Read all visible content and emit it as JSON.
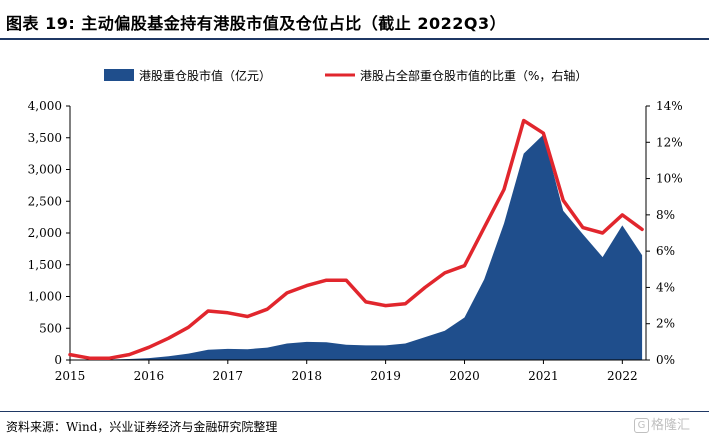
{
  "header": {
    "title": "图表 19:  主动偏股基金持有港股市值及仓位占比（截止 2022Q3）"
  },
  "footer": {
    "source": "资料来源：Wind，兴业证券经济与金融研究院整理",
    "watermark": "格隆汇"
  },
  "colors": {
    "area": "#1f4e8c",
    "line": "#e1262d",
    "rule": "#1f3864"
  },
  "chart_data": {
    "type": "area",
    "title": "",
    "x_tick_labels": [
      "2015",
      "2016",
      "2017",
      "2018",
      "2019",
      "2020",
      "2021",
      "2022"
    ],
    "x": [
      2015.0,
      2015.25,
      2015.5,
      2015.75,
      2016.0,
      2016.25,
      2016.5,
      2016.75,
      2017.0,
      2017.25,
      2017.5,
      2017.75,
      2018.0,
      2018.25,
      2018.5,
      2018.75,
      2019.0,
      2019.25,
      2019.5,
      2019.75,
      2020.0,
      2020.25,
      2020.5,
      2020.75,
      2021.0,
      2021.25,
      2021.5,
      2021.75,
      2022.0,
      2022.25
    ],
    "series": [
      {
        "name": "港股重仓股市值（亿元）",
        "type": "area",
        "axis": "left",
        "values": [
          5,
          5,
          8,
          15,
          30,
          60,
          100,
          160,
          175,
          170,
          195,
          260,
          285,
          280,
          240,
          230,
          230,
          260,
          360,
          460,
          670,
          1270,
          2150,
          3250,
          3550,
          2350,
          1980,
          1620,
          2120,
          1650
        ]
      },
      {
        "name": "港股占全部重仓股市值的比重（%，右轴）",
        "type": "line",
        "axis": "right",
        "values": [
          0.3,
          0.1,
          0.1,
          0.3,
          0.7,
          1.2,
          1.8,
          2.7,
          2.6,
          2.4,
          2.8,
          3.7,
          4.1,
          4.4,
          4.4,
          3.2,
          3.0,
          3.1,
          4.0,
          4.8,
          5.2,
          7.3,
          9.4,
          13.2,
          12.5,
          8.8,
          7.3,
          7.0,
          8.0,
          7.2
        ]
      }
    ],
    "y_left": {
      "ylim": [
        0,
        4000
      ],
      "ticks": [
        "0",
        "500",
        "1,000",
        "1,500",
        "2,000",
        "2,500",
        "3,000",
        "3,500",
        "4,000"
      ]
    },
    "y_right": {
      "ylim": [
        0,
        14
      ],
      "ticks": [
        "0%",
        "2%",
        "4%",
        "6%",
        "8%",
        "10%",
        "12%",
        "14%"
      ]
    },
    "legend": "top",
    "grid": false
  }
}
